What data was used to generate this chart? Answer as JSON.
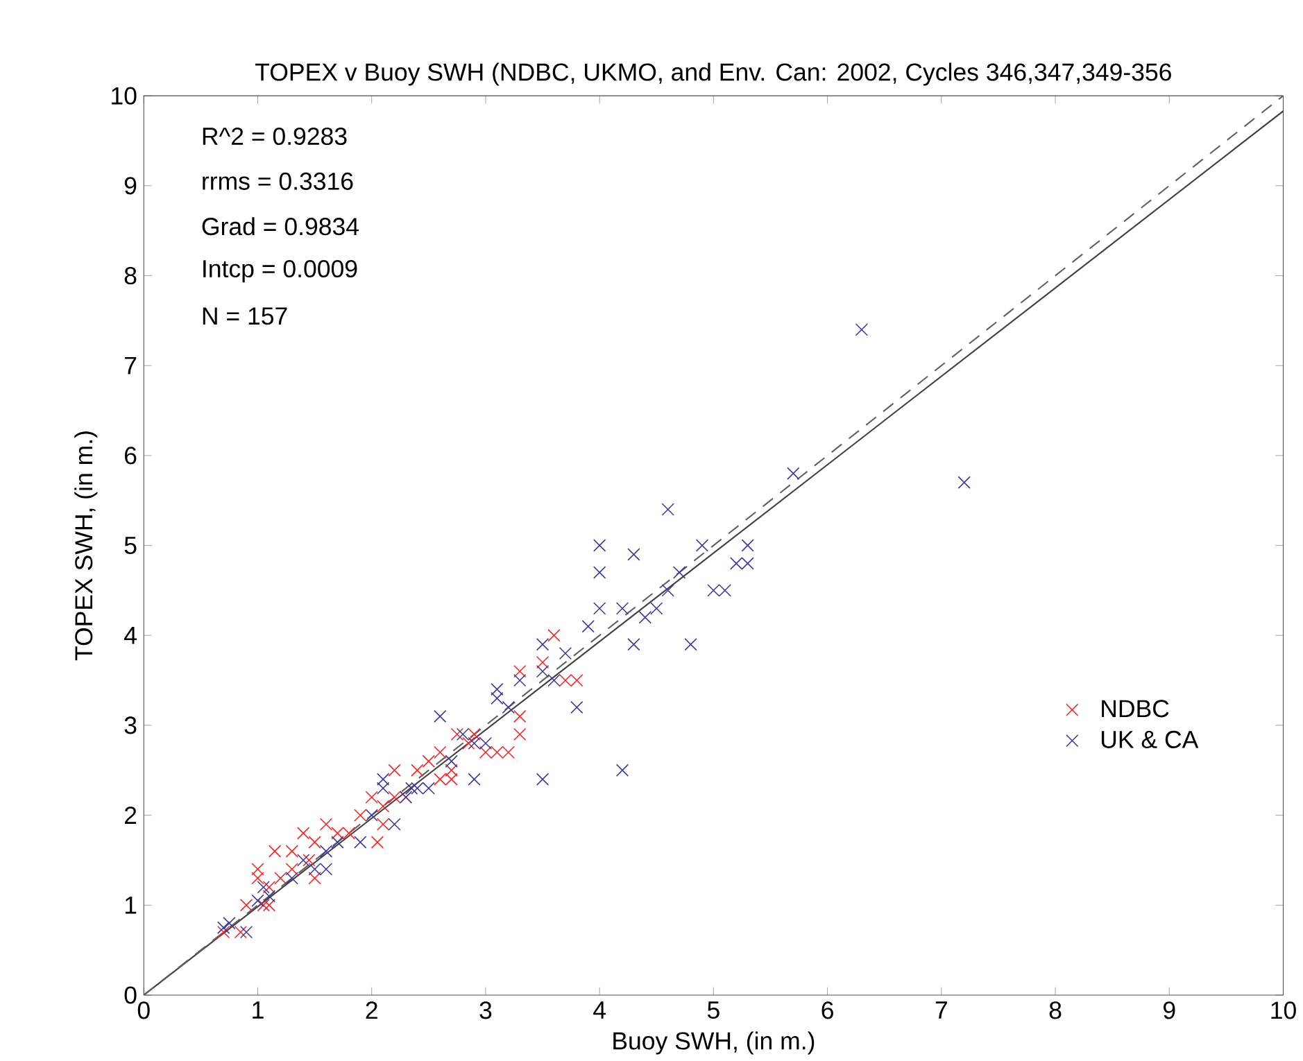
{
  "chart_data": {
    "type": "scatter",
    "title": "TOPEX v Buoy SWH (NDBC, UKMO, and Env. Can: 2002, Cycles 346,347,349-356",
    "xlabel": "Buoy SWH, (in m.)",
    "ylabel": "TOPEX SWH, (in m.)",
    "xlim": [
      0,
      10
    ],
    "ylim": [
      0,
      10
    ],
    "xticks": [
      0,
      1,
      2,
      3,
      4,
      5,
      6,
      7,
      8,
      9,
      10
    ],
    "yticks": [
      0,
      1,
      2,
      3,
      4,
      5,
      6,
      7,
      8,
      9,
      10
    ],
    "grid": false,
    "legend": "right",
    "marker": "cross",
    "annotations": [
      "R^2  =  0.9283",
      "rrms =  0.3316",
      "Grad  =  0.9834",
      "Intcp  =  0.0009",
      "N       =  157"
    ],
    "series": [
      {
        "name": "NDBC",
        "color": "#ff2020",
        "x": [
          3.6,
          3.5,
          3.7,
          3.8,
          3.3,
          3.3,
          3.3,
          3.2,
          3.0,
          2.9,
          2.75,
          2.7,
          2.6,
          2.5,
          2.6,
          2.4,
          2.3,
          2.2,
          2.2,
          2.1,
          2.1,
          2.05,
          2.0,
          1.9,
          1.8,
          1.7,
          1.6,
          1.5,
          1.4,
          1.45,
          1.3,
          1.3,
          1.2,
          1.15,
          1.1,
          1.0,
          1.0,
          1.1,
          1.05,
          0.9,
          0.85,
          0.7,
          1.5,
          2.7,
          3.1,
          2.85
        ],
        "values": [
          4.0,
          3.7,
          3.5,
          3.5,
          3.6,
          3.1,
          2.9,
          2.7,
          2.7,
          2.9,
          2.9,
          2.5,
          2.7,
          2.6,
          2.4,
          2.5,
          2.2,
          2.5,
          2.2,
          2.1,
          1.9,
          1.7,
          2.2,
          2.0,
          1.8,
          1.8,
          1.9,
          1.7,
          1.8,
          1.5,
          1.6,
          1.4,
          1.3,
          1.6,
          1.2,
          1.4,
          1.3,
          1.0,
          1.0,
          1.0,
          0.7,
          0.7,
          1.3,
          2.4,
          2.7,
          2.8
        ]
      },
      {
        "name": "UK & CA",
        "color": "#3a3aa0",
        "x": [
          6.3,
          7.2,
          5.7,
          4.6,
          4.0,
          4.0,
          4.3,
          4.9,
          5.3,
          5.3,
          5.2,
          5.0,
          5.1,
          4.7,
          4.6,
          4.4,
          4.5,
          4.0,
          4.2,
          4.3,
          4.8,
          3.9,
          3.7,
          3.8,
          4.2,
          3.5,
          3.5,
          3.5,
          3.1,
          3.1,
          3.2,
          3.3,
          3.0,
          2.9,
          2.9,
          2.7,
          2.6,
          2.4,
          2.35,
          2.3,
          2.5,
          2.1,
          2.1,
          2.2,
          2.0,
          1.9,
          1.7,
          1.6,
          1.6,
          1.5,
          1.4,
          1.3,
          1.1,
          1.0,
          0.9,
          0.75,
          0.7,
          1.05,
          3.6,
          2.8
        ],
        "values": [
          7.4,
          5.7,
          5.8,
          5.4,
          5.0,
          4.7,
          4.9,
          5.0,
          5.0,
          4.8,
          4.8,
          4.5,
          4.5,
          4.7,
          4.5,
          4.2,
          4.3,
          4.3,
          4.3,
          3.9,
          3.9,
          4.1,
          3.8,
          3.2,
          2.5,
          2.4,
          3.9,
          3.6,
          3.4,
          3.3,
          3.2,
          3.5,
          2.8,
          2.8,
          2.4,
          2.6,
          3.1,
          2.3,
          2.3,
          2.2,
          2.3,
          2.4,
          2.3,
          1.9,
          2.0,
          1.7,
          1.7,
          1.6,
          1.4,
          1.4,
          1.5,
          1.3,
          1.1,
          1.05,
          0.7,
          0.8,
          0.75,
          1.2,
          3.5,
          2.9
        ]
      },
      {
        "type": "line",
        "color": "#404040",
        "line_style": "solid",
        "marker": "none",
        "x": [
          0,
          10
        ],
        "values": [
          0,
          9.83
        ]
      },
      {
        "type": "line",
        "color": "#606060",
        "line_style": "dashed",
        "marker": "none",
        "x": [
          0,
          10
        ],
        "values": [
          0,
          10
        ]
      }
    ]
  }
}
